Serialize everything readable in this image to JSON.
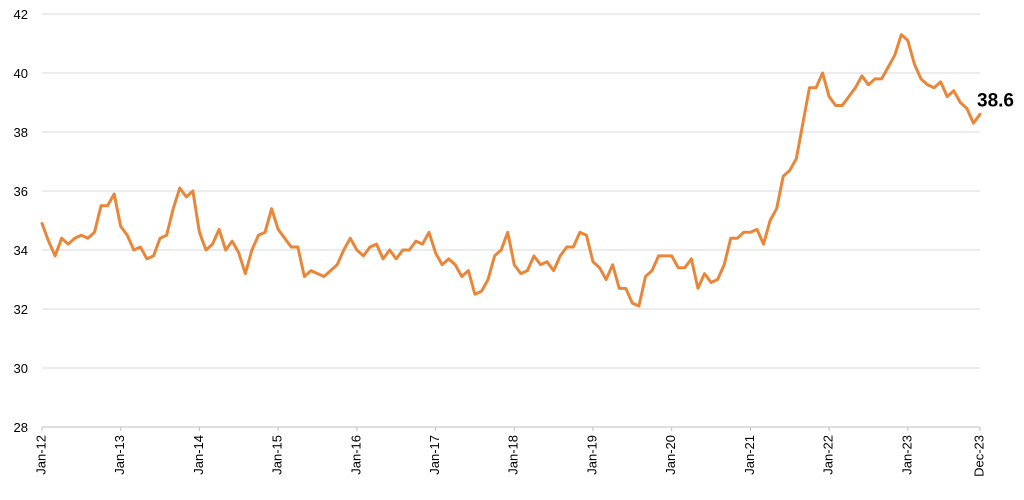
{
  "chart_data": {
    "type": "line",
    "title": "",
    "xlabel": "",
    "ylabel": "",
    "ylim": [
      28,
      42
    ],
    "y_ticks": [
      28,
      30,
      32,
      34,
      36,
      38,
      40,
      42
    ],
    "x_range": [
      "2012-01",
      "2023-12"
    ],
    "x_tick_labels": [
      {
        "date": "2012-01",
        "label": "Jan-12"
      },
      {
        "date": "2013-01",
        "label": "Jan-13"
      },
      {
        "date": "2014-01",
        "label": "Jan-14"
      },
      {
        "date": "2015-01",
        "label": "Jan-15"
      },
      {
        "date": "2016-01",
        "label": "Jan-16"
      },
      {
        "date": "2017-01",
        "label": "Jan-17"
      },
      {
        "date": "2018-01",
        "label": "Jan-18"
      },
      {
        "date": "2019-01",
        "label": "Jan-19"
      },
      {
        "date": "2020-01",
        "label": "Jan-20"
      },
      {
        "date": "2021-01",
        "label": "Jan-21"
      },
      {
        "date": "2022-01",
        "label": "Jan-22"
      },
      {
        "date": "2023-01",
        "label": "Jan-23"
      },
      {
        "date": "2023-12",
        "label": "Dec-23"
      }
    ],
    "grid": "horizontal",
    "end_label": "38.6",
    "series": [
      {
        "color": "#E8873A",
        "x": [
          "2012-01",
          "2012-02",
          "2012-03",
          "2012-04",
          "2012-05",
          "2012-06",
          "2012-07",
          "2012-08",
          "2012-09",
          "2012-10",
          "2012-11",
          "2012-12",
          "2013-01",
          "2013-02",
          "2013-03",
          "2013-04",
          "2013-05",
          "2013-06",
          "2013-07",
          "2013-08",
          "2013-09",
          "2013-10",
          "2013-11",
          "2013-12",
          "2014-01",
          "2014-02",
          "2014-03",
          "2014-04",
          "2014-05",
          "2014-06",
          "2014-07",
          "2014-08",
          "2014-09",
          "2014-10",
          "2014-11",
          "2014-12",
          "2015-01",
          "2015-02",
          "2015-03",
          "2015-04",
          "2015-05",
          "2015-06",
          "2015-07",
          "2015-08",
          "2015-09",
          "2015-10",
          "2015-11",
          "2015-12",
          "2016-01",
          "2016-02",
          "2016-03",
          "2016-04",
          "2016-05",
          "2016-06",
          "2016-07",
          "2016-08",
          "2016-09",
          "2016-10",
          "2016-11",
          "2016-12",
          "2017-01",
          "2017-02",
          "2017-03",
          "2017-04",
          "2017-05",
          "2017-06",
          "2017-07",
          "2017-08",
          "2017-09",
          "2017-10",
          "2017-11",
          "2017-12",
          "2018-01",
          "2018-02",
          "2018-03",
          "2018-04",
          "2018-05",
          "2018-06",
          "2018-07",
          "2018-08",
          "2018-09",
          "2018-10",
          "2018-11",
          "2018-12",
          "2019-01",
          "2019-02",
          "2019-03",
          "2019-04",
          "2019-05",
          "2019-06",
          "2019-07",
          "2019-08",
          "2019-09",
          "2019-10",
          "2019-11",
          "2019-12",
          "2020-01",
          "2020-02",
          "2020-03",
          "2020-04",
          "2020-05",
          "2020-06",
          "2020-07",
          "2020-08",
          "2020-09",
          "2020-10",
          "2020-11",
          "2020-12",
          "2021-01",
          "2021-02",
          "2021-03",
          "2021-04",
          "2021-05",
          "2021-06",
          "2021-07",
          "2021-08",
          "2021-09",
          "2021-10",
          "2021-11",
          "2021-12",
          "2022-01",
          "2022-02",
          "2022-03",
          "2022-04",
          "2022-05",
          "2022-06",
          "2022-07",
          "2022-08",
          "2022-09",
          "2022-10",
          "2022-11",
          "2022-12",
          "2023-01",
          "2023-02",
          "2023-03",
          "2023-04",
          "2023-05",
          "2023-06",
          "2023-07",
          "2023-08",
          "2023-09",
          "2023-10",
          "2023-11",
          "2023-12"
        ],
        "values": [
          34.9,
          34.3,
          33.8,
          34.4,
          34.2,
          34.4,
          34.5,
          34.4,
          34.6,
          35.5,
          35.5,
          35.9,
          34.8,
          34.5,
          34.0,
          34.1,
          33.7,
          33.8,
          34.4,
          34.5,
          35.4,
          36.1,
          35.8,
          36.0,
          34.6,
          34.0,
          34.2,
          34.7,
          34.0,
          34.3,
          33.9,
          33.2,
          34.0,
          34.5,
          34.6,
          35.4,
          34.7,
          34.4,
          34.1,
          34.1,
          33.1,
          33.3,
          33.2,
          33.1,
          33.3,
          33.5,
          34.0,
          34.4,
          34.0,
          33.8,
          34.1,
          34.2,
          33.7,
          34.0,
          33.7,
          34.0,
          34.0,
          34.3,
          34.2,
          34.6,
          33.9,
          33.5,
          33.7,
          33.5,
          33.1,
          33.3,
          32.5,
          32.6,
          33.0,
          33.8,
          34.0,
          34.6,
          33.5,
          33.2,
          33.3,
          33.8,
          33.5,
          33.6,
          33.3,
          33.8,
          34.1,
          34.1,
          34.6,
          34.5,
          33.6,
          33.4,
          33.0,
          33.5,
          32.7,
          32.7,
          32.2,
          32.1,
          33.1,
          33.3,
          33.8,
          33.8,
          33.8,
          33.4,
          33.4,
          33.7,
          32.7,
          33.2,
          32.9,
          33.0,
          33.5,
          34.4,
          34.4,
          34.6,
          34.6,
          34.7,
          34.2,
          35.0,
          35.4,
          36.5,
          36.7,
          37.1,
          38.3,
          39.5,
          39.5,
          40.0,
          39.2,
          38.9,
          38.9,
          39.2,
          39.5,
          39.9,
          39.6,
          39.8,
          39.8,
          40.2,
          40.6,
          41.3,
          41.1,
          40.3,
          39.8,
          39.6,
          39.5,
          39.7,
          39.2,
          39.4,
          39.0,
          38.8,
          38.3,
          38.6
        ]
      }
    ]
  }
}
